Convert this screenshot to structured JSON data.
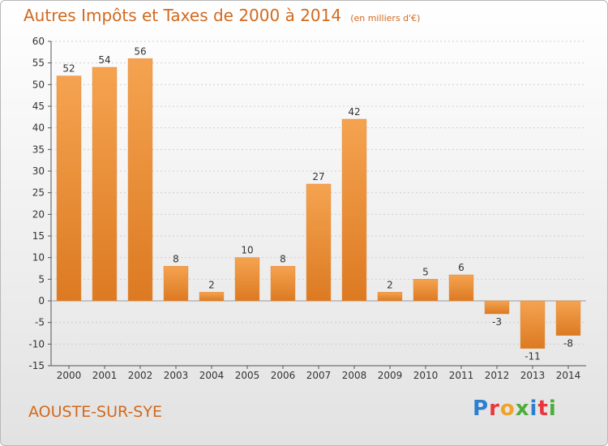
{
  "title": "Autres Impôts et Taxes de 2000 à 2014",
  "unit_label": "(en milliers d'€)",
  "commune": "AOUSTE-SUR-SYE",
  "brand": {
    "text": "Proxiti",
    "letters": [
      {
        "ch": "P",
        "color": "#2a7fd0"
      },
      {
        "ch": "r",
        "color": "#e8373c"
      },
      {
        "ch": "o",
        "color": "#f0a22a"
      },
      {
        "ch": "x",
        "color": "#4cae3a"
      },
      {
        "ch": "i",
        "color": "#2a7fd0"
      },
      {
        "ch": "t",
        "color": "#e8373c"
      },
      {
        "ch": "i",
        "color": "#4cae3a"
      }
    ]
  },
  "colors": {
    "bar_light": "#f5a350",
    "bar_dark": "#dc7a22",
    "title": "#d2691e",
    "axis": "#555555",
    "grid": "#cfcfcf"
  },
  "chart_data": {
    "type": "bar",
    "categories": [
      "2000",
      "2001",
      "2002",
      "2003",
      "2004",
      "2005",
      "2006",
      "2007",
      "2008",
      "2009",
      "2010",
      "2011",
      "2012",
      "2013",
      "2014"
    ],
    "values": [
      52,
      54,
      56,
      8,
      2,
      10,
      8,
      27,
      42,
      2,
      5,
      6,
      -3,
      -11,
      -8
    ],
    "data_labels": [
      "52",
      "54",
      "56",
      "8",
      "2",
      "10",
      "8",
      "27",
      "42",
      "2",
      "5",
      "6",
      "-3",
      "-11",
      "-8"
    ],
    "ylim": [
      -15,
      60
    ],
    "yticks": [
      -15,
      -10,
      -5,
      0,
      5,
      10,
      15,
      20,
      25,
      30,
      35,
      40,
      45,
      50,
      55,
      60
    ],
    "grid": true
  }
}
